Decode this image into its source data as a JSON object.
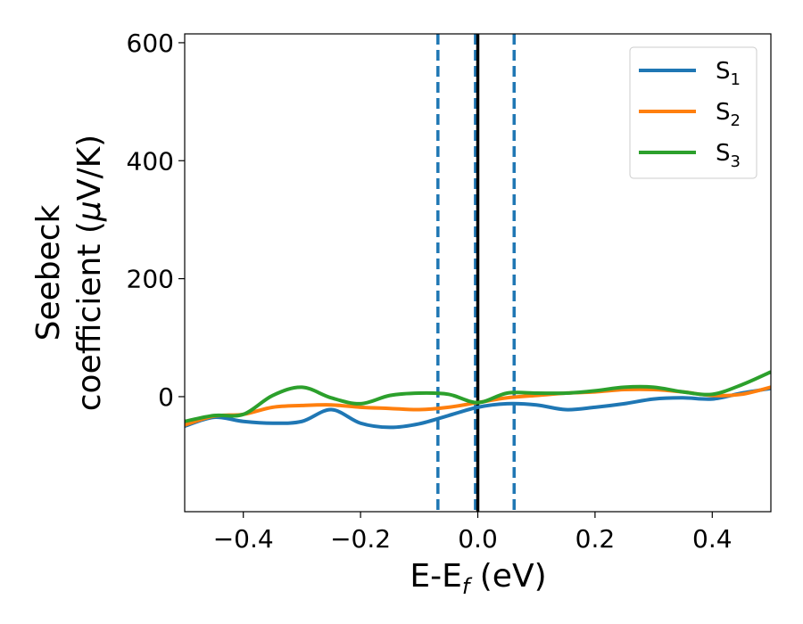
{
  "chart_data": {
    "type": "line",
    "title": "",
    "xlabel": {
      "main": "E-E",
      "sub": "f",
      "unit": " (eV)"
    },
    "ylabel": {
      "line1": "Seebeck",
      "line2_prefix": "coefficient  (",
      "mu": "μ",
      "line2_suffix": "V/K)"
    },
    "xlim": [
      -0.5,
      0.5
    ],
    "ylim": [
      -195,
      615
    ],
    "xticks": [
      -0.4,
      -0.2,
      0.0,
      0.2,
      0.4
    ],
    "xtick_labels": [
      "−0.4",
      "−0.2",
      "0.0",
      "0.2",
      "0.4"
    ],
    "yticks": [
      0,
      200,
      400,
      600
    ],
    "ytick_labels": [
      "0",
      "200",
      "400",
      "600"
    ],
    "grid": false,
    "legend_position": "top-right",
    "vlines": [
      {
        "x": -0.068,
        "color": "#1f77b4",
        "style": "dashed"
      },
      {
        "x": -0.004,
        "color": "#1f77b4",
        "style": "dashed"
      },
      {
        "x": 0.0,
        "color": "#000000",
        "style": "solid"
      },
      {
        "x": 0.062,
        "color": "#1f77b4",
        "style": "dashed"
      }
    ],
    "x": [
      -0.5,
      -0.45,
      -0.4,
      -0.35,
      -0.3,
      -0.25,
      -0.2,
      -0.15,
      -0.1,
      -0.05,
      0.0,
      0.05,
      0.1,
      0.15,
      0.2,
      0.25,
      0.3,
      0.35,
      0.4,
      0.45,
      0.5
    ],
    "series": [
      {
        "name": "S",
        "sub": "1",
        "color": "#1f77b4",
        "values": [
          -50,
          -35,
          -42,
          -45,
          -42,
          -22,
          -45,
          -52,
          -46,
          -32,
          -18,
          -12,
          -14,
          -22,
          -18,
          -12,
          -4,
          -2,
          -4,
          6,
          14
        ]
      },
      {
        "name": "S",
        "sub": "2",
        "color": "#ff7f0e",
        "values": [
          -48,
          -33,
          -30,
          -18,
          -15,
          -14,
          -18,
          -20,
          -22,
          -18,
          -10,
          -2,
          2,
          6,
          8,
          12,
          12,
          8,
          2,
          4,
          16
        ]
      },
      {
        "name": "S",
        "sub": "3",
        "color": "#2ca02c",
        "values": [
          -42,
          -32,
          -30,
          2,
          16,
          -2,
          -12,
          2,
          6,
          4,
          -10,
          6,
          6,
          6,
          10,
          16,
          16,
          8,
          4,
          20,
          42
        ]
      }
    ]
  }
}
